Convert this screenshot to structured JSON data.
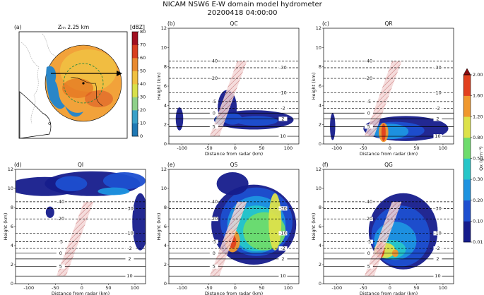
{
  "figure": {
    "title": "NICAM NSW6 E-W domain model hydrometer",
    "subtitle": "20200418 04:00:00"
  },
  "chart_data": [
    {
      "type": "map",
      "label": "(a)",
      "title": "Zₕₕ 2.25 km",
      "colorbar_label": "[dBZ]",
      "clim": [
        0,
        80
      ],
      "cticks": [
        0,
        10,
        20,
        30,
        40,
        50,
        60,
        70,
        80
      ],
      "colors": [
        "#1f78b4",
        "#3aa0c8",
        "#8fd08a",
        "#d8e04a",
        "#f0c040",
        "#e88a30",
        "#d84020",
        "#a01020"
      ]
    },
    {
      "type": "contour",
      "label": "(b)",
      "title": "QC",
      "xlabel": "Distance from radar (km)",
      "ylabel": "Height (km)",
      "xlim": [
        -125,
        120
      ],
      "xticks": [
        -100,
        -50,
        0,
        50,
        100
      ],
      "ylim": [
        0,
        12
      ],
      "yticks": [
        0,
        2,
        4,
        6,
        8,
        10,
        12
      ]
    },
    {
      "type": "contour",
      "label": "(c)",
      "title": "QR",
      "xlabel": "Distance from radar (km)",
      "ylabel": "Height (km)",
      "xlim": [
        -125,
        120
      ],
      "xticks": [
        -100,
        -50,
        0,
        50,
        100
      ],
      "ylim": [
        0,
        12
      ],
      "yticks": [
        0,
        2,
        4,
        6,
        8,
        10,
        12
      ]
    },
    {
      "type": "contour",
      "label": "(d)",
      "title": "QI",
      "xlabel": "Distance from radar (km)",
      "ylabel": "Height (km)",
      "xlim": [
        -125,
        120
      ],
      "xticks": [
        -100,
        -50,
        0,
        50,
        100
      ],
      "ylim": [
        0,
        12
      ],
      "yticks": [
        0,
        2,
        4,
        6,
        8,
        10,
        12
      ]
    },
    {
      "type": "contour",
      "label": "(e)",
      "title": "QS",
      "xlabel": "Distance from radar (km)",
      "ylabel": "Height (km)",
      "xlim": [
        -125,
        120
      ],
      "xticks": [
        -100,
        -50,
        0,
        50,
        100
      ],
      "ylim": [
        0,
        12
      ],
      "yticks": [
        0,
        2,
        4,
        6,
        8,
        10,
        12
      ]
    },
    {
      "type": "contour",
      "label": "(f)",
      "title": "QG",
      "xlabel": "Distance from radar (km)",
      "ylabel": "Height (km)",
      "xlim": [
        -125,
        120
      ],
      "xticks": [
        -100,
        -50,
        0,
        50,
        100
      ],
      "ylim": [
        0,
        12
      ],
      "yticks": [
        0,
        2,
        4,
        6,
        8,
        10,
        12
      ]
    }
  ],
  "isotherms": {
    "values": [
      -40,
      -30,
      -20,
      -10,
      -5,
      -2,
      0,
      2,
      5,
      10
    ],
    "heights": [
      8.6,
      7.9,
      6.8,
      5.3,
      4.4,
      3.7,
      3.2,
      2.6,
      1.8,
      0.8
    ]
  },
  "colorbar": {
    "label": "Qx (g m⁻³)",
    "ticks": [
      0.01,
      {
        "value": 0.1,
        "label": "0.10"
      },
      {
        "value": 0.2,
        "label": "0.20"
      },
      {
        "value": 0.3,
        "label": "0.30"
      },
      {
        "value": 0.5,
        "label": "0.50"
      },
      {
        "value": 0.8,
        "label": "0.80"
      },
      {
        "value": 1.2,
        "label": "1.20"
      },
      {
        "value": 1.6,
        "label": "1.60"
      },
      {
        "value": 2,
        "label": "2.00"
      }
    ],
    "colors": [
      "#161c8c",
      "#1d4fd0",
      "#1e93e0",
      "#27c6c8",
      "#6edc6c",
      "#dde24a",
      "#f0982e",
      "#e2401e",
      "#8a0c10"
    ]
  }
}
